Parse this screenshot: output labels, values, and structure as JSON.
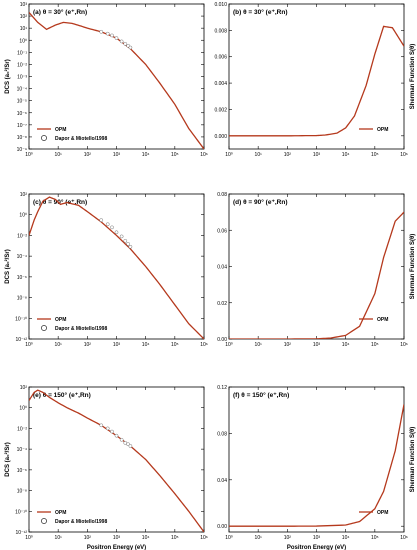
{
  "colors": {
    "curve": "#b5391d",
    "marker": "#555555",
    "frame": "#000000"
  },
  "chart_data": [
    {
      "type": "line",
      "panel": "a",
      "label": "(a) θ = 30° (e⁺,Rn)",
      "xscale": "log",
      "yscale": "log",
      "xlim": [
        1,
        1000000
      ],
      "ylim": [
        1e-09,
        1000
      ],
      "ylabel": "DCS (a₀²/Sr)",
      "xlabel": "",
      "xticks": [
        "10⁰",
        "10¹",
        "10²",
        "10³",
        "10⁴",
        "10⁵",
        "10⁶"
      ],
      "yticks": [
        "10⁻⁹",
        "10⁻⁸",
        "10⁻⁷",
        "10⁻⁶",
        "10⁻⁵",
        "10⁻⁴",
        "10⁻³",
        "10⁻²",
        "10⁻¹",
        "10⁰",
        "10¹",
        "10²",
        "10³"
      ],
      "legend": [
        "OPM",
        "Dapor & Miotello/1998"
      ],
      "series": [
        {
          "name": "OPM",
          "x": [
            1,
            2,
            4,
            8,
            15,
            30,
            60,
            100,
            300,
            1000,
            3000,
            10000,
            30000,
            100000,
            300000,
            1000000
          ],
          "y": [
            200,
            30,
            8,
            18,
            30,
            25,
            15,
            10,
            5,
            1.5,
            0.2,
            0.01,
            0.0003,
            5e-06,
            5e-08,
            1e-09
          ]
        },
        {
          "name": "Dapor & Miotello/1998",
          "markers": true,
          "x": [
            300,
            500,
            700,
            1000,
            1500,
            2000,
            2500,
            3000
          ],
          "y": [
            5,
            3.5,
            2.5,
            1.5,
            0.8,
            0.5,
            0.35,
            0.25
          ]
        }
      ]
    },
    {
      "type": "line",
      "panel": "b",
      "label": "(b) θ = 30° (e⁺,Rn)",
      "xscale": "log",
      "yscale": "linear",
      "xlim": [
        1,
        1000000
      ],
      "ylim": [
        -0.001,
        0.01
      ],
      "ylabel": "Sherman Function S(θ)",
      "xlabel": "",
      "xticks": [
        "10⁰",
        "10¹",
        "10²",
        "10³",
        "10⁴",
        "10⁵",
        "10⁶"
      ],
      "yticks": [
        "0.000",
        "0.002",
        "0.004",
        "0.006",
        "0.008",
        "0.010"
      ],
      "legend": [
        "OPM"
      ],
      "series": [
        {
          "name": "OPM",
          "x": [
            1,
            10,
            100,
            1000,
            2000,
            5000,
            10000,
            20000,
            50000,
            100000,
            200000,
            400000,
            1000000
          ],
          "y": [
            0,
            0,
            0,
            2e-05,
            6e-05,
            0.0002,
            0.0006,
            0.0015,
            0.0038,
            0.0062,
            0.0083,
            0.0082,
            0.0068
          ]
        }
      ]
    },
    {
      "type": "line",
      "panel": "c",
      "label": "(c) θ = 90° (e⁺,Rn)",
      "xscale": "log",
      "yscale": "log",
      "xlim": [
        1,
        1000000
      ],
      "ylim": [
        1e-12,
        100
      ],
      "ylabel": "DCS (a₀²/Sr)",
      "xlabel": "",
      "xticks": [
        "10⁰",
        "10¹",
        "10²",
        "10³",
        "10⁴",
        "10⁵",
        "10⁶"
      ],
      "yticks": [
        "10⁻¹²",
        "10⁻¹⁰",
        "10⁻⁸",
        "10⁻⁶",
        "10⁻⁴",
        "10⁻²",
        "10⁰",
        "10²"
      ],
      "legend": [
        "OPM",
        "Dapor & Miotello/1998"
      ],
      "series": [
        {
          "name": "OPM",
          "x": [
            1,
            1.5,
            2,
            3,
            5,
            8,
            12,
            20,
            50,
            100,
            300,
            1000,
            3000,
            10000,
            30000,
            100000,
            300000,
            1000000
          ],
          "y": [
            0.01,
            0.3,
            2,
            20,
            50,
            30,
            10,
            15,
            8,
            2,
            0.2,
            0.01,
            0.0005,
            1e-05,
            2e-07,
            2e-09,
            3e-11,
            1e-12
          ]
        },
        {
          "name": "Dapor & Miotello/1998",
          "markers": true,
          "x": [
            300,
            500,
            700,
            1000,
            1500,
            2000,
            2500,
            3000
          ],
          "y": [
            0.3,
            0.12,
            0.06,
            0.02,
            0.008,
            0.003,
            0.0015,
            0.0008
          ]
        }
      ]
    },
    {
      "type": "line",
      "panel": "d",
      "label": "(d) θ = 90° (e⁺,Rn)",
      "xscale": "log",
      "yscale": "linear",
      "xlim": [
        1,
        1000000
      ],
      "ylim": [
        0,
        0.08
      ],
      "ylabel": "Sherman Function S(θ)",
      "xlabel": "",
      "xticks": [
        "10⁰",
        "10¹",
        "10²",
        "10³",
        "10⁴",
        "10⁵",
        "10⁶"
      ],
      "yticks": [
        "0.00",
        "0.02",
        "0.04",
        "0.06",
        "0.08"
      ],
      "legend": [
        "OPM"
      ],
      "series": [
        {
          "name": "OPM",
          "x": [
            1,
            10,
            100,
            1000,
            3000,
            10000,
            30000,
            100000,
            200000,
            500000,
            1000000
          ],
          "y": [
            0,
            0,
            0,
            0.0001,
            0.0005,
            0.002,
            0.007,
            0.025,
            0.045,
            0.065,
            0.07
          ]
        }
      ]
    },
    {
      "type": "line",
      "panel": "e",
      "label": "(e) θ = 150° (e⁺,Rn)",
      "xscale": "log",
      "yscale": "log",
      "xlim": [
        1,
        1000000
      ],
      "ylim": [
        1e-12,
        100
      ],
      "ylabel": "DCS (a₀²/Sr)",
      "xlabel": "Positron Energy (eV)",
      "xticks": [
        "10⁰",
        "10¹",
        "10²",
        "10³",
        "10⁴",
        "10⁵",
        "10⁶"
      ],
      "yticks": [
        "10⁻¹²",
        "10⁻¹⁰",
        "10⁻⁸",
        "10⁻⁶",
        "10⁻⁴",
        "10⁻²",
        "10⁰",
        "10²"
      ],
      "legend": [
        "OPM",
        "Dapor & Miotello/1998"
      ],
      "series": [
        {
          "name": "OPM",
          "x": [
            1,
            1.5,
            2,
            3,
            5,
            10,
            20,
            50,
            100,
            300,
            1000,
            3000,
            10000,
            30000,
            100000,
            300000,
            1000000
          ],
          "y": [
            5,
            30,
            50,
            30,
            10,
            3,
            1,
            0.3,
            0.1,
            0.02,
            0.002,
            0.0002,
            1e-05,
            3e-07,
            5e-09,
            1e-10,
            1e-12
          ]
        },
        {
          "name": "Dapor & Miotello/1998",
          "markers": true,
          "x": [
            300,
            500,
            700,
            1000,
            1500,
            2000,
            2500,
            3000
          ],
          "y": [
            0.02,
            0.01,
            0.005,
            0.002,
            0.0008,
            0.0004,
            0.0003,
            0.0002
          ]
        }
      ]
    },
    {
      "type": "line",
      "panel": "f",
      "label": "(f) θ = 150° (e⁺,Rn)",
      "xscale": "log",
      "yscale": "linear",
      "xlim": [
        1,
        1000000
      ],
      "ylim": [
        -0.005,
        0.12
      ],
      "ylabel": "Sherman Function S(θ)",
      "xlabel": "Positron Energy (eV)",
      "xticks": [
        "10⁰",
        "10¹",
        "10²",
        "10³",
        "10⁴",
        "10⁵",
        "10⁶"
      ],
      "yticks": [
        "0.00",
        "0.04",
        "0.08",
        "0.12"
      ],
      "legend": [
        "OPM"
      ],
      "series": [
        {
          "name": "OPM",
          "x": [
            1,
            10,
            100,
            1000,
            10000,
            30000,
            100000,
            200000,
            500000,
            1000000
          ],
          "y": [
            0,
            0,
            0,
            0.0001,
            0.001,
            0.004,
            0.015,
            0.03,
            0.065,
            0.105
          ]
        }
      ]
    }
  ]
}
